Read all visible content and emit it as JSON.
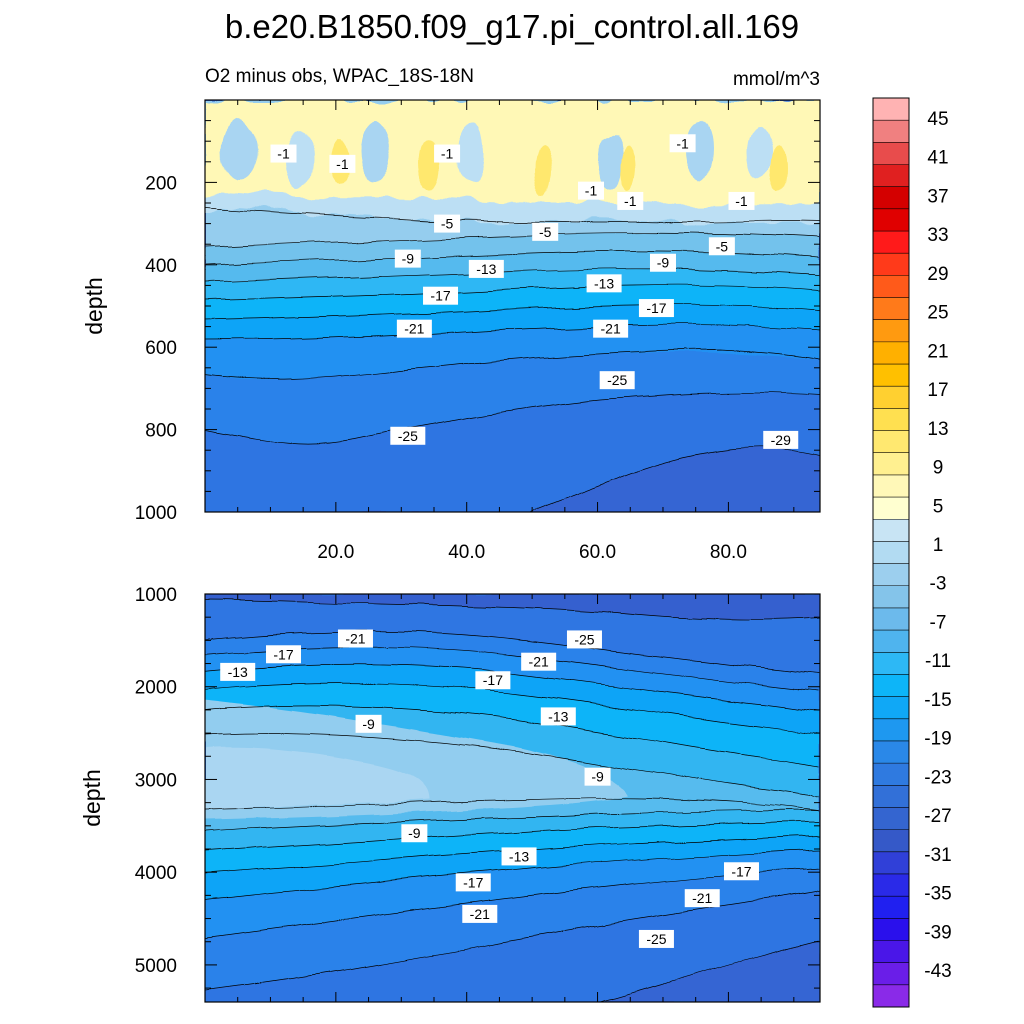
{
  "chart_data": {
    "type": "heatmap",
    "title": "b.e20.B1850.f09_g17.pi_control.all.169",
    "subtitle": "O2 minus obs, WPAC_18S-18N",
    "units": "mmol/m^3",
    "colorbar": {
      "labels": [
        "45",
        "41",
        "37",
        "33",
        "29",
        "25",
        "21",
        "17",
        "13",
        "9",
        "5",
        "1",
        "-3",
        "-7",
        "-11",
        "-15",
        "-19",
        "-23",
        "-27",
        "-31",
        "-35",
        "-39",
        "-43"
      ],
      "colors": [
        "#ffb3b3",
        "#f08080",
        "#e84c4c",
        "#e02020",
        "#d40000",
        "#e00000",
        "#ff1a1a",
        "#ff3a1a",
        "#ff5a1a",
        "#ff7a1a",
        "#ff9a10",
        "#ffb000",
        "#ffc000",
        "#ffd030",
        "#ffe050",
        "#ffe870",
        "#fff090",
        "#fff8b8",
        "#ffffd0",
        "#c8e4f4",
        "#b2dbf2",
        "#9ccfee",
        "#84c4ea",
        "#6cbaec",
        "#4fb4ee",
        "#2db8f5",
        "#0db5f8",
        "#10a8f6",
        "#1e98f0",
        "#2a88e8",
        "#2f7ae0",
        "#3270d8",
        "#3465d0",
        "#3559c8",
        "#3040d8",
        "#2a2ae8",
        "#2020f0",
        "#2a10ec",
        "#4a16e8",
        "#6a1ee8",
        "#8a2ae8"
      ]
    },
    "panels": [
      {
        "name": "upper",
        "ylabel": "depth",
        "ylim": [
          0,
          1000
        ],
        "y_reversed": true,
        "xlim": [
          0,
          94
        ],
        "xticks": [
          "20.0",
          "40.0",
          "60.0",
          "80.0"
        ],
        "xtick_values": [
          20,
          40,
          60,
          80
        ],
        "yticks": [
          "200",
          "400",
          "600",
          "800",
          "1000"
        ],
        "ytick_values": [
          200,
          400,
          600,
          800,
          1000
        ],
        "contour_labels": [
          {
            "text": "-1",
            "x": 12,
            "y": 130
          },
          {
            "text": "-1",
            "x": 21,
            "y": 155
          },
          {
            "text": "-1",
            "x": 37,
            "y": 130
          },
          {
            "text": "-1",
            "x": 59,
            "y": 220
          },
          {
            "text": "-1",
            "x": 65,
            "y": 245
          },
          {
            "text": "-1",
            "x": 73,
            "y": 105
          },
          {
            "text": "-1",
            "x": 82,
            "y": 245
          },
          {
            "text": "-5",
            "x": 37,
            "y": 300
          },
          {
            "text": "-5",
            "x": 52,
            "y": 320
          },
          {
            "text": "-5",
            "x": 79,
            "y": 355
          },
          {
            "text": "-9",
            "x": 31,
            "y": 385
          },
          {
            "text": "-9",
            "x": 70,
            "y": 395
          },
          {
            "text": "-13",
            "x": 43,
            "y": 410
          },
          {
            "text": "-13",
            "x": 61,
            "y": 445
          },
          {
            "text": "-17",
            "x": 36,
            "y": 475
          },
          {
            "text": "-17",
            "x": 69,
            "y": 505
          },
          {
            "text": "-21",
            "x": 32,
            "y": 555
          },
          {
            "text": "-21",
            "x": 62,
            "y": 555
          },
          {
            "text": "-25",
            "x": 63,
            "y": 680
          },
          {
            "text": "-25",
            "x": 31,
            "y": 815
          },
          {
            "text": "-29",
            "x": 88,
            "y": 825
          }
        ]
      },
      {
        "name": "lower",
        "ylabel": "depth",
        "ylim": [
          1000,
          5400
        ],
        "y_reversed": true,
        "xlim": [
          0,
          94
        ],
        "xticks": [],
        "yticks": [
          "1000",
          "2000",
          "3000",
          "4000",
          "5000"
        ],
        "ytick_values": [
          1000,
          2000,
          3000,
          4000,
          5000
        ],
        "contour_labels": [
          {
            "text": "-21",
            "x": 23,
            "y": 1480
          },
          {
            "text": "-17",
            "x": 12,
            "y": 1650
          },
          {
            "text": "-13",
            "x": 5,
            "y": 1840
          },
          {
            "text": "-25",
            "x": 58,
            "y": 1490
          },
          {
            "text": "-21",
            "x": 51,
            "y": 1730
          },
          {
            "text": "-17",
            "x": 44,
            "y": 1930
          },
          {
            "text": "-13",
            "x": 54,
            "y": 2320
          },
          {
            "text": "-9",
            "x": 25,
            "y": 2400
          },
          {
            "text": "-9",
            "x": 60,
            "y": 2970
          },
          {
            "text": "-9",
            "x": 32,
            "y": 3580
          },
          {
            "text": "-13",
            "x": 48,
            "y": 3830
          },
          {
            "text": "-17",
            "x": 41,
            "y": 4110
          },
          {
            "text": "-17",
            "x": 82,
            "y": 3990
          },
          {
            "text": "-21",
            "x": 42,
            "y": 4450
          },
          {
            "text": "-21",
            "x": 76,
            "y": 4280
          },
          {
            "text": "-25",
            "x": 69,
            "y": 4720
          }
        ]
      }
    ]
  }
}
